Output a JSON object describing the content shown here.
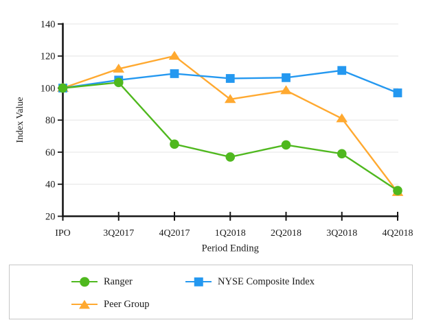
{
  "chart_data": {
    "type": "line",
    "title": "",
    "xlabel": "Period Ending",
    "ylabel": "Index Value",
    "categories": [
      "IPO",
      "3Q2017",
      "4Q2017",
      "1Q2018",
      "2Q2018",
      "3Q2018",
      "4Q2018"
    ],
    "series": [
      {
        "name": "Ranger",
        "marker": "circle",
        "color": "#4FB81E",
        "z": 3,
        "values": [
          100,
          103.5,
          65,
          57,
          64.5,
          59,
          36
        ]
      },
      {
        "name": "Peer Group",
        "marker": "triangle",
        "color": "#FFA930",
        "z": 1,
        "values": [
          100,
          112,
          120,
          93,
          98.5,
          81,
          35
        ]
      },
      {
        "name": "NYSE Composite Index",
        "marker": "square",
        "color": "#2498F0",
        "z": 2,
        "values": [
          100,
          105,
          109,
          106,
          106.5,
          111,
          97
        ]
      }
    ],
    "ylim": [
      20,
      140
    ],
    "yticks": [
      20,
      40,
      60,
      80,
      100,
      120,
      140
    ],
    "grid": true,
    "gridline_color": "#E9E9E9",
    "axis_color": "#161616",
    "legend_position": "bottom-box"
  }
}
